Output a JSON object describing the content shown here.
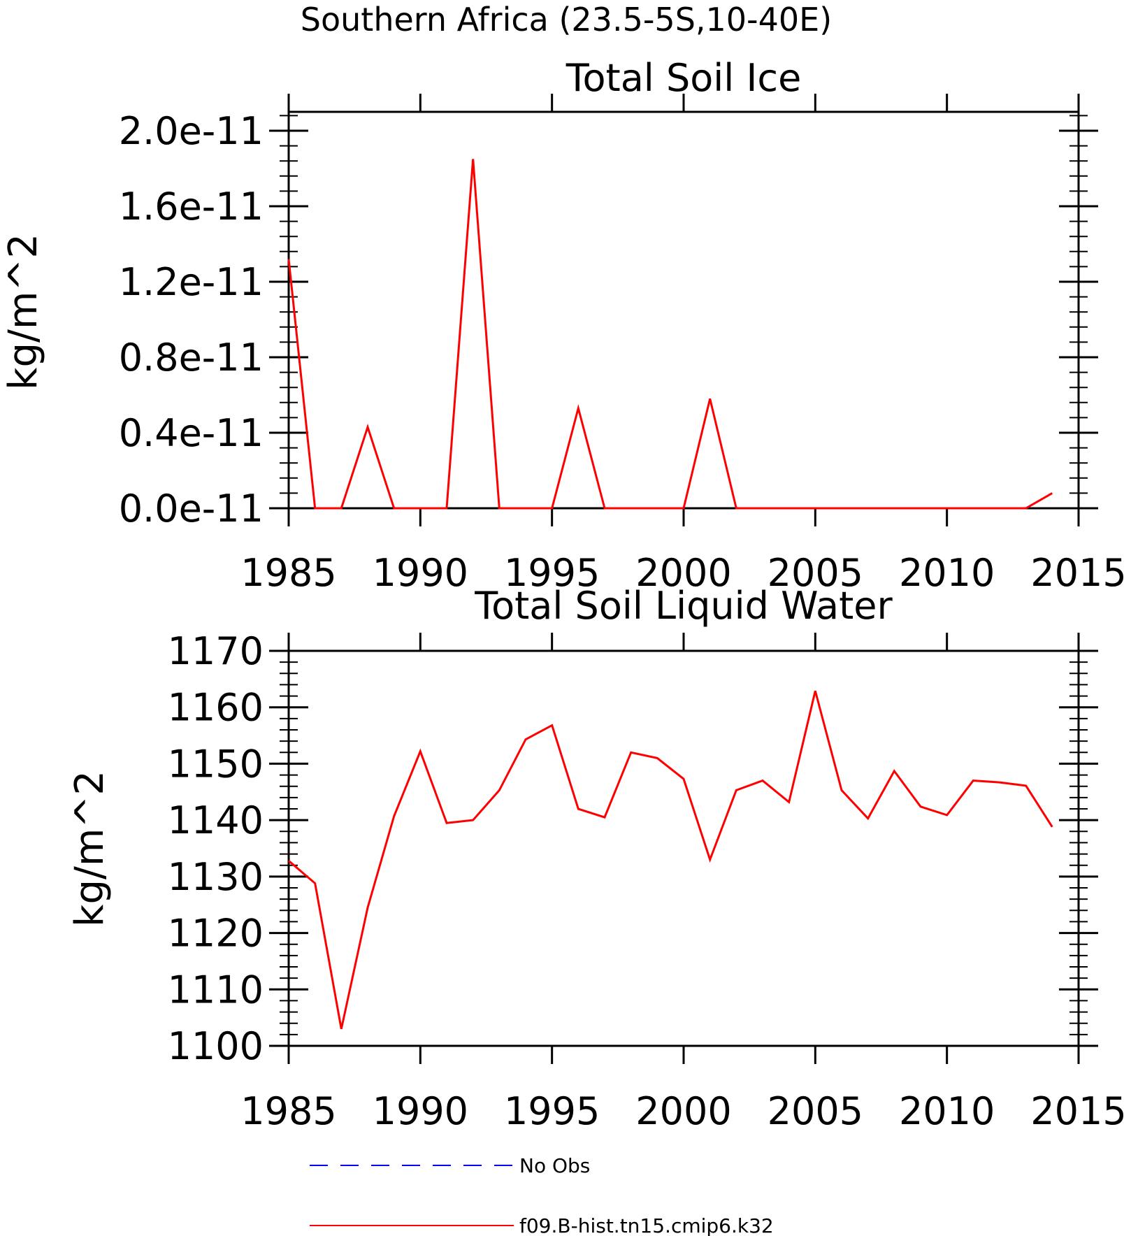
{
  "page_title": "Southern Africa (23.5-5S,10-40E)",
  "colors": {
    "model_line": "#ff0000",
    "obs_line": "#0000ff",
    "axes": "#000000"
  },
  "legend": {
    "placement": "bottom",
    "entries": [
      {
        "label": "No Obs",
        "style": "dashed",
        "color": "#0000ff"
      },
      {
        "label": "f09.B-hist.tn15.cmip6.k32",
        "style": "solid",
        "color": "#ff0000"
      }
    ]
  },
  "chart_data": [
    {
      "type": "line",
      "title": "Total Soil Ice",
      "xlabel": "",
      "ylabel": "kg/m^2",
      "xlim": [
        1985,
        2015
      ],
      "ylim": [
        0,
        2.1e-11
      ],
      "grid": false,
      "x_ticks": [
        1985,
        1990,
        1995,
        2000,
        2005,
        2010,
        2015
      ],
      "x_tick_labels": [
        "1985",
        "1990",
        "1995",
        "2000",
        "2005",
        "2010",
        "2015"
      ],
      "y_ticks": [
        0,
        4e-12,
        8e-12,
        1.2e-11,
        1.6e-11,
        2e-11
      ],
      "y_tick_labels": [
        "0.0e-11",
        "0.4e-11",
        "0.8e-11",
        "1.2e-11",
        "1.6e-11",
        "2.0e-11"
      ],
      "x": [
        1985,
        1986,
        1987,
        1988,
        1989,
        1990,
        1991,
        1992,
        1993,
        1994,
        1995,
        1996,
        1997,
        1998,
        1999,
        2000,
        2001,
        2002,
        2003,
        2004,
        2005,
        2006,
        2007,
        2008,
        2009,
        2010,
        2011,
        2012,
        2013,
        2014
      ],
      "series": [
        {
          "name": "f09.B-hist.tn15.cmip6.k32",
          "values": [
            1.32e-11,
            0,
            0,
            4.3e-12,
            0,
            0,
            0,
            1.85e-11,
            0,
            0,
            0,
            5.3e-12,
            0,
            0,
            0,
            0,
            5.8e-12,
            0,
            0,
            0,
            0,
            0,
            0,
            0,
            0,
            0,
            0,
            0,
            0,
            8e-13
          ]
        }
      ]
    },
    {
      "type": "line",
      "title": "Total Soil Liquid Water",
      "xlabel": "",
      "ylabel": "kg/m^2",
      "xlim": [
        1985,
        2015
      ],
      "ylim": [
        1100,
        1170
      ],
      "grid": false,
      "x_ticks": [
        1985,
        1990,
        1995,
        2000,
        2005,
        2010,
        2015
      ],
      "x_tick_labels": [
        "1985",
        "1990",
        "1995",
        "2000",
        "2005",
        "2010",
        "2015"
      ],
      "y_ticks": [
        1100,
        1110,
        1120,
        1130,
        1140,
        1150,
        1160,
        1170
      ],
      "y_tick_labels": [
        "1100",
        "1110",
        "1120",
        "1130",
        "1140",
        "1150",
        "1160",
        "1170"
      ],
      "x": [
        1985,
        1986,
        1987,
        1988,
        1989,
        1990,
        1991,
        1992,
        1993,
        1994,
        1995,
        1996,
        1997,
        1998,
        1999,
        2000,
        2001,
        2002,
        2003,
        2004,
        2005,
        2006,
        2007,
        2008,
        2009,
        2010,
        2011,
        2012,
        2013,
        2014
      ],
      "series": [
        {
          "name": "f09.B-hist.tn15.cmip6.k32",
          "values": [
            1132.8,
            1128.8,
            1103.0,
            1124.5,
            1140.7,
            1152.2,
            1139.5,
            1140.0,
            1145.3,
            1154.3,
            1156.8,
            1142.0,
            1140.5,
            1152.0,
            1151.0,
            1147.3,
            1133.0,
            1145.3,
            1147.0,
            1143.2,
            1162.9,
            1145.3,
            1140.3,
            1148.7,
            1142.4,
            1140.9,
            1147.0,
            1146.7,
            1146.1,
            1138.8
          ]
        }
      ]
    }
  ]
}
